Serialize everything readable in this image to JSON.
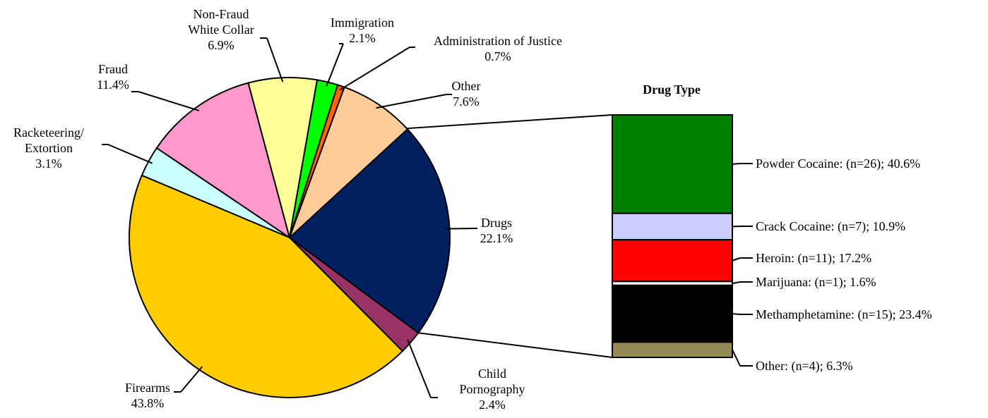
{
  "chart_data": [
    {
      "type": "pie",
      "slices": [
        {
          "label_lines": [
            "Drugs"
          ],
          "value": 22.1,
          "value_text": "22.1%",
          "color": "#002060"
        },
        {
          "label_lines": [
            "Child",
            "Pornography"
          ],
          "value": 2.4,
          "value_text": "2.4%",
          "color": "#993366"
        },
        {
          "label_lines": [
            "Firearms"
          ],
          "value": 43.8,
          "value_text": "43.8%",
          "color": "#FFCC00"
        },
        {
          "label_lines": [
            "Racketeering/",
            "Extortion"
          ],
          "value": 3.1,
          "value_text": "3.1%",
          "color": "#CCFFFF"
        },
        {
          "label_lines": [
            "Fraud"
          ],
          "value": 11.4,
          "value_text": "11.4%",
          "color": "#FF99CC"
        },
        {
          "label_lines": [
            "Non-Fraud",
            "White Collar"
          ],
          "value": 6.9,
          "value_text": "6.9%",
          "color": "#FFFF99"
        },
        {
          "label_lines": [
            "Immigration"
          ],
          "value": 2.1,
          "value_text": "2.1%",
          "color": "#00FF00"
        },
        {
          "label_lines": [
            "Administration of Justice"
          ],
          "value": 0.7,
          "value_text": "0.7%",
          "color": "#FF6600"
        },
        {
          "label_lines": [
            "Other"
          ],
          "value": 7.6,
          "value_text": "7.6%",
          "color": "#FFCC99"
        }
      ]
    },
    {
      "type": "bar",
      "subtype": "stacked-100",
      "title": "Drug Type",
      "segments": [
        {
          "label": "Powder Cocaine:  (n=26); 40.6%",
          "name": "Powder Cocaine",
          "n": 26,
          "value": 40.6,
          "color": "#008000"
        },
        {
          "label": "Crack Cocaine:  (n=7); 10.9%",
          "name": "Crack Cocaine",
          "n": 7,
          "value": 10.9,
          "color": "#CCCCFF"
        },
        {
          "label": "Heroin:  (n=11); 17.2%",
          "name": "Heroin",
          "n": 11,
          "value": 17.2,
          "color": "#FF0000"
        },
        {
          "label": "Marijuana:  (n=1); 1.6%",
          "name": "Marijuana",
          "n": 1,
          "value": 1.6,
          "color": "#FFFFFF"
        },
        {
          "label": "Methamphetamine:  (n=15); 23.4%",
          "name": "Methamphetamine",
          "n": 15,
          "value": 23.4,
          "color": "#000000"
        },
        {
          "label": "Other:  (n=4); 6.3%",
          "name": "Other",
          "n": 4,
          "value": 6.3,
          "color": "#948A54"
        }
      ]
    }
  ]
}
